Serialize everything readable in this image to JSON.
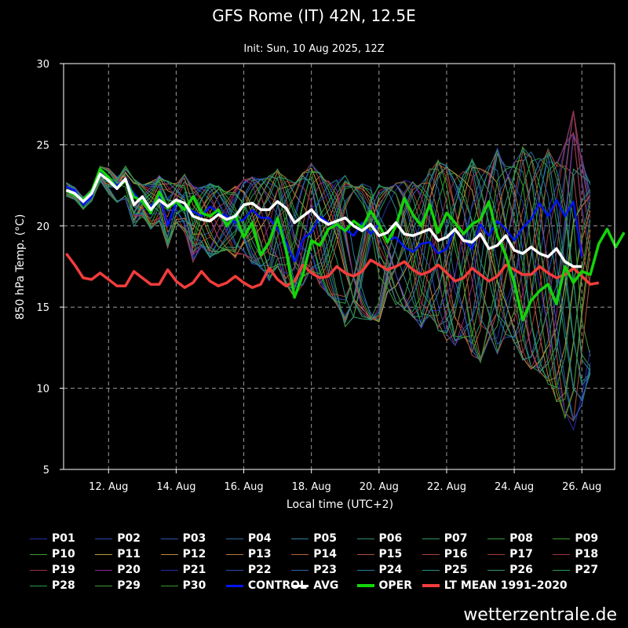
{
  "chart_data": {
    "type": "line",
    "title": "GFS Rome (IT) 42N, 12.5E",
    "subtitle": "Init: Sun, 10 Aug 2025, 12Z",
    "xlabel": "Local time (UTC+2)",
    "ylabel": "850 hPa Temp. (°C)",
    "ylim": [
      5,
      30
    ],
    "yticks": [
      5,
      10,
      15,
      20,
      25,
      30
    ],
    "xticks": [
      "12. Aug",
      "14. Aug",
      "16. Aug",
      "18. Aug",
      "20. Aug",
      "22. Aug",
      "24. Aug",
      "26. Aug"
    ],
    "xtick_day": [
      12,
      14,
      16,
      18,
      20,
      22,
      24,
      26
    ],
    "xlim_day": [
      10.67,
      26.97
    ],
    "grid": true,
    "step_hours": 6,
    "series": [
      {
        "name": "AVG",
        "color": "#ffffff",
        "values": [
          22.2,
          22.0,
          21.5,
          22.0,
          23.2,
          22.8,
          22.3,
          22.9,
          21.3,
          21.8,
          21.0,
          21.6,
          21.2,
          21.6,
          21.4,
          20.6,
          20.4,
          20.3,
          20.7,
          20.4,
          20.6,
          21.3,
          21.4,
          21.0,
          21.0,
          21.5,
          21.1,
          20.2,
          20.6,
          21.0,
          20.4,
          20.1,
          20.3,
          20.5,
          20.0,
          19.7,
          20.1,
          19.4,
          19.6,
          20.2,
          19.5,
          19.4,
          19.6,
          19.8,
          19.1,
          19.3,
          19.8,
          19.1,
          19.0,
          19.5,
          18.6,
          18.8,
          19.4,
          18.5,
          18.3,
          18.7,
          18.3,
          18.1,
          18.6,
          17.8,
          17.5,
          17.5
        ]
      },
      {
        "name": "OPER",
        "color": "#14d40b",
        "values": [
          22.2,
          21.9,
          21.6,
          22.1,
          23.5,
          23.0,
          22.3,
          22.8,
          21.8,
          21.5,
          20.8,
          22.1,
          21.1,
          21.5,
          21.0,
          21.8,
          20.8,
          20.6,
          21.0,
          20.0,
          20.7,
          19.3,
          20.2,
          18.2,
          19.0,
          20.5,
          18.5,
          15.6,
          17.0,
          19.1,
          18.8,
          19.8,
          20.1,
          19.7,
          20.3,
          19.9,
          20.9,
          20.1,
          19.0,
          20.0,
          21.7,
          20.7,
          20.0,
          21.3,
          19.6,
          20.8,
          20.2,
          19.5,
          20.1,
          20.4,
          21.5,
          19.4,
          18.2,
          16.5,
          14.2,
          15.4,
          16.0,
          16.4,
          15.2,
          17.5,
          16.5,
          17.2,
          17.0,
          18.9,
          19.8,
          18.7,
          19.6
        ]
      },
      {
        "name": "CONTROL",
        "color": "#0015f5",
        "values": [
          22.4,
          22.2,
          21.3,
          21.8,
          23.4,
          23.0,
          22.5,
          22.8,
          22.0,
          21.4,
          21.2,
          21.9,
          20.0,
          21.5,
          21.1,
          20.9,
          20.6,
          21.2,
          20.8,
          20.6,
          20.2,
          20.4,
          21.0,
          20.5,
          20.5,
          19.8,
          19.0,
          17.8,
          19.2,
          19.6,
          20.6,
          20.2,
          20.0,
          19.8,
          19.4,
          20.2,
          19.5,
          20.1,
          19.1,
          19.3,
          18.7,
          18.4,
          18.9,
          19.0,
          18.3,
          18.6,
          19.8,
          19.2,
          18.6,
          20.1,
          19.4,
          20.3,
          19.8,
          19.1,
          19.9,
          20.4,
          21.4,
          20.6,
          21.6,
          20.6,
          21.5,
          18.1
        ]
      },
      {
        "name": "LT MEAN 1991–2020",
        "color": "#f23c3c",
        "values": [
          18.3,
          17.6,
          16.8,
          16.7,
          17.1,
          16.7,
          16.3,
          16.3,
          17.2,
          16.8,
          16.4,
          16.4,
          17.3,
          16.6,
          16.2,
          16.5,
          17.2,
          16.6,
          16.3,
          16.5,
          16.9,
          16.5,
          16.2,
          16.4,
          17.4,
          16.7,
          16.3,
          16.6,
          17.6,
          17.1,
          16.8,
          16.9,
          17.5,
          17.1,
          16.9,
          17.2,
          17.9,
          17.6,
          17.3,
          17.5,
          17.8,
          17.3,
          17.0,
          17.2,
          17.6,
          17.1,
          16.6,
          16.8,
          17.4,
          17.0,
          16.6,
          16.9,
          17.6,
          17.3,
          17.0,
          17.0,
          17.5,
          17.1,
          16.8,
          17.0,
          17.4,
          16.9,
          16.4,
          16.5
        ]
      }
    ],
    "members": [
      "P01",
      "P02",
      "P03",
      "P04",
      "P05",
      "P06",
      "P07",
      "P08",
      "P09",
      "P10",
      "P11",
      "P12",
      "P13",
      "P14",
      "P15",
      "P16",
      "P17",
      "P18",
      "P19",
      "P20",
      "P21",
      "P22",
      "P23",
      "P24",
      "P25",
      "P26",
      "P27",
      "P28",
      "P29",
      "P30"
    ],
    "member_colors": [
      "#2c2fa8",
      "#2e45b4",
      "#2b56a8",
      "#2b6aa2",
      "#2c7f9c",
      "#2a8c7e",
      "#2b9660",
      "#2e9a45",
      "#3a9c32",
      "#3d9a36",
      "#bda03c",
      "#bd8a3c",
      "#b57a3c",
      "#b2663a",
      "#ae543c",
      "#a8453d",
      "#a33a3c",
      "#9e3540",
      "#9a3145",
      "#8a2a8a",
      "#2a2ab2",
      "#2b4cb3",
      "#2b66a6",
      "#2b7a9e",
      "#2a8d84",
      "#2b9670",
      "#2c9a5a",
      "#2e9c46",
      "#3a9c35",
      "#3b9a30"
    ],
    "member_spread": {
      "upper": [
        22.7,
        22.4,
        21.8,
        22.3,
        23.7,
        23.6,
        23.2,
        23.8,
        23.0,
        22.6,
        22.8,
        23.2,
        22.9,
        22.7,
        23.3,
        22.6,
        22.5,
        22.8,
        22.6,
        22.2,
        22.7,
        23.0,
        23.2,
        23.1,
        23.3,
        23.7,
        23.2,
        22.9,
        23.5,
        24.1,
        23.5,
        23.0,
        23.2,
        23.4,
        22.7,
        22.9,
        23.5,
        23.0,
        22.6,
        22.9,
        23.1,
        23.0,
        22.9,
        23.8,
        24.4,
        24.1,
        23.6,
        23.7,
        24.5,
        23.9,
        24.1,
        25.2,
        24.0,
        24.3,
        25.3,
        25.0,
        24.6,
        25.2,
        24.4,
        25.7,
        27.9,
        24.7,
        23.2
      ],
      "lower": [
        21.8,
        21.6,
        21.0,
        21.5,
        22.6,
        21.9,
        21.4,
        21.6,
        19.8,
        20.5,
        19.7,
        20.2,
        18.5,
        20.1,
        19.5,
        17.6,
        18.6,
        17.9,
        18.2,
        18.4,
        17.8,
        18.1,
        17.5,
        17.2,
        16.4,
        17.3,
        16.1,
        15.3,
        16.1,
        17.0,
        16.1,
        15.5,
        14.9,
        13.5,
        13.4,
        13.9,
        13.9,
        13.8,
        15.4,
        14.9,
        14.5,
        14.1,
        13.4,
        14.2,
        13.2,
        12.6,
        12.3,
        12.8,
        11.6,
        11.2,
        12.5,
        11.7,
        12.8,
        12.4,
        11.3,
        10.7,
        10.5,
        9.8,
        8.7,
        7.6,
        6.8,
        8.5,
        10.5
      ]
    }
  },
  "legend": {
    "members": [
      "P01",
      "P02",
      "P03",
      "P04",
      "P05",
      "P06",
      "P07",
      "P08",
      "P09",
      "P10",
      "P11",
      "P12",
      "P13",
      "P14",
      "P15",
      "P16",
      "P17",
      "P18",
      "P19",
      "P20",
      "P21",
      "P22",
      "P23",
      "P24",
      "P25",
      "P26",
      "P27",
      "P28",
      "P29",
      "P30"
    ],
    "control_label": "CONTROL",
    "avg_label": "AVG",
    "oper_label": "OPER",
    "lt_mean_label": "LT MEAN 1991–2020"
  },
  "brand": "wetterzentrale.de"
}
